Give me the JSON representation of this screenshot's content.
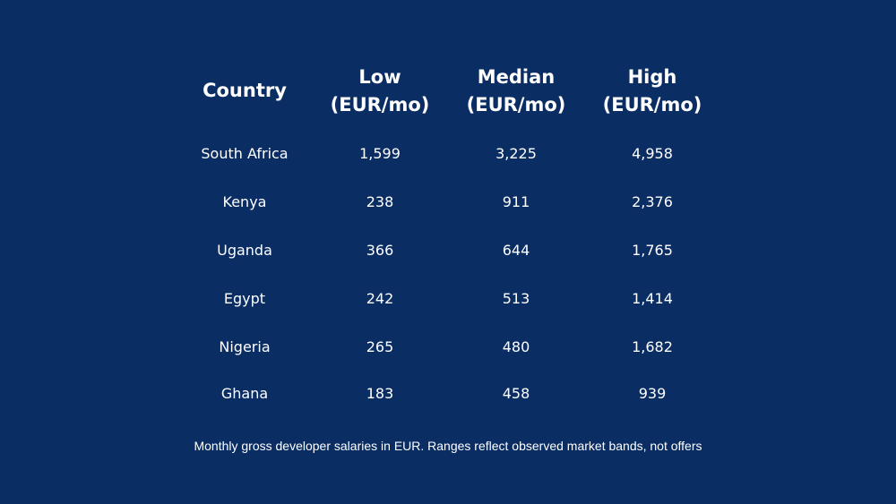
{
  "colors": {
    "background": "#0a2d64",
    "text": "#ffffff"
  },
  "table": {
    "headers": {
      "country": "Country",
      "low": [
        "Low",
        "(EUR/mo)"
      ],
      "median": [
        "Median",
        "(EUR/mo)"
      ],
      "high": [
        "High",
        "(EUR/mo)"
      ]
    },
    "rows": [
      {
        "country": "South Africa",
        "low": "1,599",
        "median": "3,225",
        "high": "4,958"
      },
      {
        "country": "Kenya",
        "low": "238",
        "median": "911",
        "high": "2,376"
      },
      {
        "country": "Uganda",
        "low": "366",
        "median": "644",
        "high": "1,765"
      },
      {
        "country": "Egypt",
        "low": "242",
        "median": "513",
        "high": "1,414"
      },
      {
        "country": "Nigeria",
        "low": "265",
        "median": "480",
        "high": "1,682"
      },
      {
        "country": "Ghana",
        "low": "183",
        "median": "458",
        "high": "939"
      }
    ]
  },
  "footnote": "Monthly gross developer salaries in EUR. Ranges reflect observed market bands, not offers",
  "chart_data": {
    "type": "table",
    "columns": [
      "Country",
      "Low (EUR/mo)",
      "Median (EUR/mo)",
      "High (EUR/mo)"
    ],
    "categories": [
      "South Africa",
      "Kenya",
      "Uganda",
      "Egypt",
      "Nigeria",
      "Ghana"
    ],
    "series": [
      {
        "name": "Low (EUR/mo)",
        "values": [
          1599,
          238,
          366,
          242,
          265,
          183
        ]
      },
      {
        "name": "Median (EUR/mo)",
        "values": [
          3225,
          911,
          644,
          513,
          480,
          458
        ]
      },
      {
        "name": "High (EUR/mo)",
        "values": [
          4958,
          2376,
          1765,
          1414,
          1682,
          939
        ]
      }
    ],
    "annotations": [
      "Monthly gross developer salaries in EUR. Ranges reflect observed market bands, not offers"
    ]
  }
}
